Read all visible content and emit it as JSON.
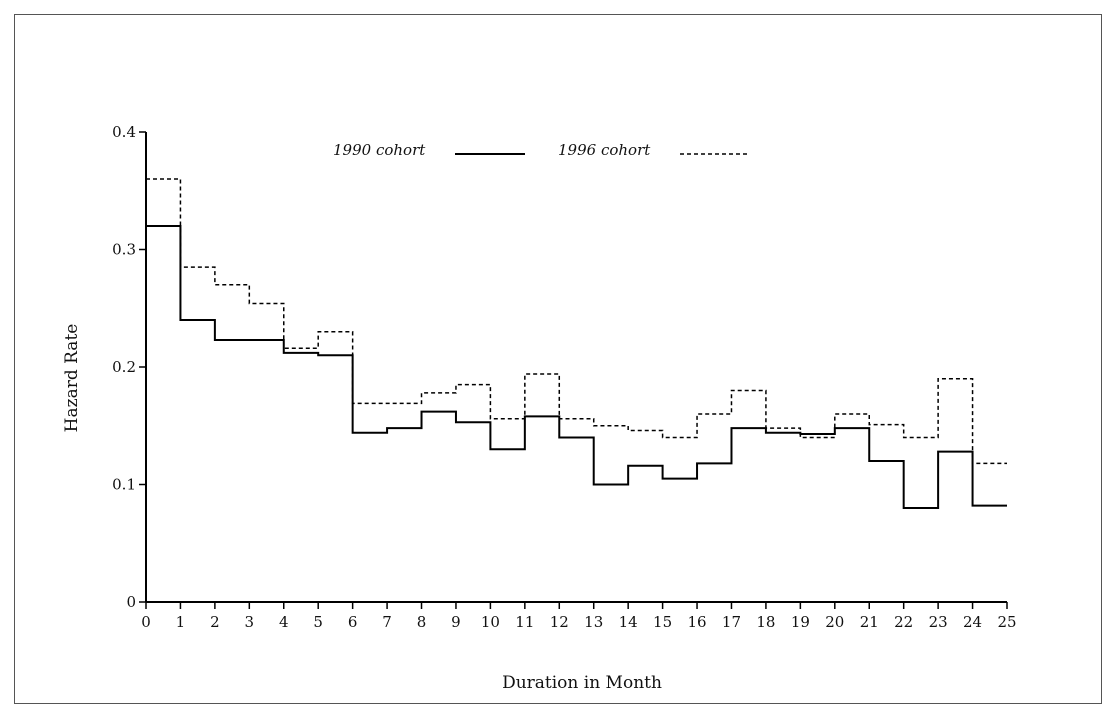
{
  "chart_data": {
    "type": "line",
    "step": true,
    "title": "",
    "xlabel": "Duration in Month",
    "ylabel": "Hazard Rate",
    "xlim": [
      0,
      25
    ],
    "ylim": [
      0,
      0.4
    ],
    "x_ticks": [
      "0",
      "1",
      "2",
      "3",
      "4",
      "5",
      "6",
      "7",
      "8",
      "9",
      "10",
      "11",
      "12",
      "13",
      "14",
      "15",
      "16",
      "17",
      "18",
      "19",
      "20",
      "21",
      "22",
      "23",
      "24",
      "25"
    ],
    "y_ticks": [
      "0",
      "0.1",
      "0.2",
      "0.3",
      "0.4"
    ],
    "grid": false,
    "legend_position": "top",
    "series": [
      {
        "name": "1990 cohort",
        "style": "solid",
        "color": "#000000",
        "values": [
          0.32,
          0.24,
          0.223,
          0.223,
          0.212,
          0.21,
          0.144,
          0.148,
          0.162,
          0.153,
          0.13,
          0.158,
          0.14,
          0.1,
          0.116,
          0.105,
          0.118,
          0.148,
          0.144,
          0.143,
          0.148,
          0.12,
          0.08,
          0.128,
          0.082
        ]
      },
      {
        "name": "1996 cohort",
        "style": "dashed",
        "color": "#000000",
        "values": [
          0.36,
          0.285,
          0.27,
          0.254,
          0.216,
          0.23,
          0.169,
          0.169,
          0.178,
          0.185,
          0.156,
          0.194,
          0.156,
          0.15,
          0.146,
          0.14,
          0.16,
          0.18,
          0.148,
          0.14,
          0.16,
          0.151,
          0.14,
          0.19,
          0.118
        ]
      }
    ]
  }
}
